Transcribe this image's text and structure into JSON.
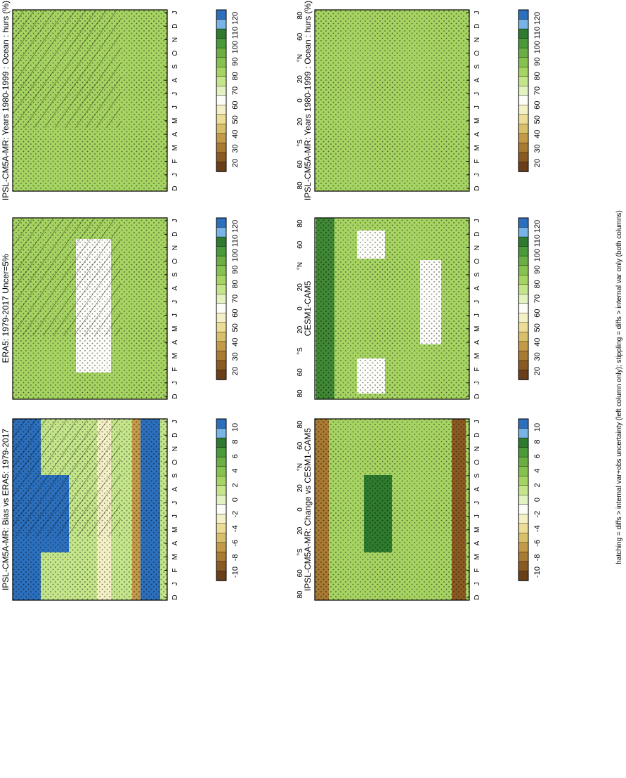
{
  "figure": {
    "footnote": "hatching = diffs > internal var+obs uncertainty (left column only); stippling = diffs > internal var only (both columns)"
  },
  "colors": {
    "abs_scale": [
      "#2b6fbd",
      "#78b4e6",
      "#2e7a2e",
      "#4a9a3a",
      "#6aae44",
      "#86c24f",
      "#a6d462",
      "#c4e58a",
      "#e2f2c0",
      "#fcfcf8",
      "#f4f0c6",
      "#ecdc96",
      "#d8c06a",
      "#c49a48",
      "#a87a32",
      "#8a5a22",
      "#6a3f18"
    ],
    "diff_scale": [
      "#2b6fbd",
      "#78b4e6",
      "#2e7a2e",
      "#4a9a3a",
      "#6aae44",
      "#86c24f",
      "#a6d462",
      "#c4e58a",
      "#e2f2c0",
      "#fcfcf8",
      "#f4f0c6",
      "#ecdc96",
      "#d8c06a",
      "#c49a48",
      "#a87a32",
      "#8a5a22",
      "#6a3f18"
    ]
  },
  "chart_data": [
    {
      "type": "heatmap",
      "title": "IPSL-CM5A-MR: Years 1980-1999 : Ocean : hurs (%)",
      "xticks": [
        "D",
        "J",
        "F",
        "M",
        "A",
        "M",
        "J",
        "J",
        "A",
        "S",
        "O",
        "N",
        "D",
        "J"
      ],
      "yticks": [
        "80",
        "60",
        "°N",
        "20",
        "0",
        "20",
        "°S",
        "60",
        "80"
      ],
      "colorbar_ticks": [
        "120",
        "110",
        "100",
        "90",
        "80",
        "70",
        "60",
        "50",
        "40",
        "30",
        "20"
      ],
      "hatching": true,
      "stippling": true,
      "dominant_class": 6
    },
    {
      "type": "heatmap",
      "title": "IPSL-CM5A-MR: Years 1980-1999 : Ocean : hurs (%)",
      "xticks": [
        "D",
        "J",
        "F",
        "M",
        "A",
        "M",
        "J",
        "J",
        "A",
        "S",
        "O",
        "N",
        "D",
        "J"
      ],
      "yticks": [
        "80",
        "60",
        "°N",
        "20",
        "0",
        "20",
        "°S",
        "60",
        "80"
      ],
      "colorbar_ticks": [
        "120",
        "110",
        "100",
        "90",
        "80",
        "70",
        "60",
        "50",
        "40",
        "30",
        "20"
      ],
      "hatching": false,
      "stippling": true,
      "dominant_class": 6
    },
    {
      "type": "heatmap",
      "title": "ERA5: 1979-2017 Uncer=5%",
      "xticks": [
        "D",
        "J",
        "F",
        "M",
        "A",
        "M",
        "J",
        "J",
        "A",
        "S",
        "O",
        "N",
        "D",
        "J"
      ],
      "yticks": [
        "80",
        "60",
        "°N",
        "20",
        "0",
        "20",
        "°S",
        "60",
        "80"
      ],
      "colorbar_ticks": [
        "120",
        "110",
        "100",
        "90",
        "80",
        "70",
        "60",
        "50",
        "40",
        "30",
        "20"
      ],
      "hatching": true,
      "stippling": true,
      "dominant_class": 6
    },
    {
      "type": "heatmap",
      "title": "CESM1-CAM5",
      "xticks": [
        "D",
        "J",
        "F",
        "M",
        "A",
        "M",
        "J",
        "J",
        "A",
        "S",
        "O",
        "N",
        "D",
        "J"
      ],
      "yticks": [
        "80",
        "60",
        "°N",
        "20",
        "0",
        "20",
        "°S",
        "60",
        "80"
      ],
      "colorbar_ticks": [
        "120",
        "110",
        "100",
        "90",
        "80",
        "70",
        "60",
        "50",
        "40",
        "30",
        "20"
      ],
      "hatching": false,
      "stippling": true,
      "dominant_class": 6
    },
    {
      "type": "heatmap",
      "title": "IPSL-CM5A-MR: Bias vs ERA5: 1979-2017",
      "xticks": [
        "D",
        "J",
        "F",
        "M",
        "A",
        "M",
        "J",
        "J",
        "A",
        "S",
        "O",
        "N",
        "D",
        "J"
      ],
      "yticks": [
        "80",
        "60",
        "°N",
        "20",
        "0",
        "20",
        "°S",
        "60",
        "80"
      ],
      "colorbar_ticks": [
        "10",
        "8",
        "6",
        "4",
        "2",
        "0",
        "-2",
        "-4",
        "-6",
        "-8",
        "-10"
      ],
      "hatching": true,
      "stippling": true,
      "dominant_class": 7
    },
    {
      "type": "heatmap",
      "title": "IPSL-CM5A-MR: Change vs CESM1-CAM5",
      "xticks": [
        "D",
        "J",
        "F",
        "M",
        "A",
        "M",
        "J",
        "J",
        "A",
        "S",
        "O",
        "N",
        "D",
        "J"
      ],
      "yticks": [
        "80",
        "60",
        "°N",
        "20",
        "0",
        "20",
        "°S",
        "60",
        "80"
      ],
      "colorbar_ticks": [
        "10",
        "8",
        "6",
        "4",
        "2",
        "0",
        "-2",
        "-4",
        "-6",
        "-8",
        "-10"
      ],
      "hatching": false,
      "stippling": true,
      "dominant_class": 6
    }
  ]
}
